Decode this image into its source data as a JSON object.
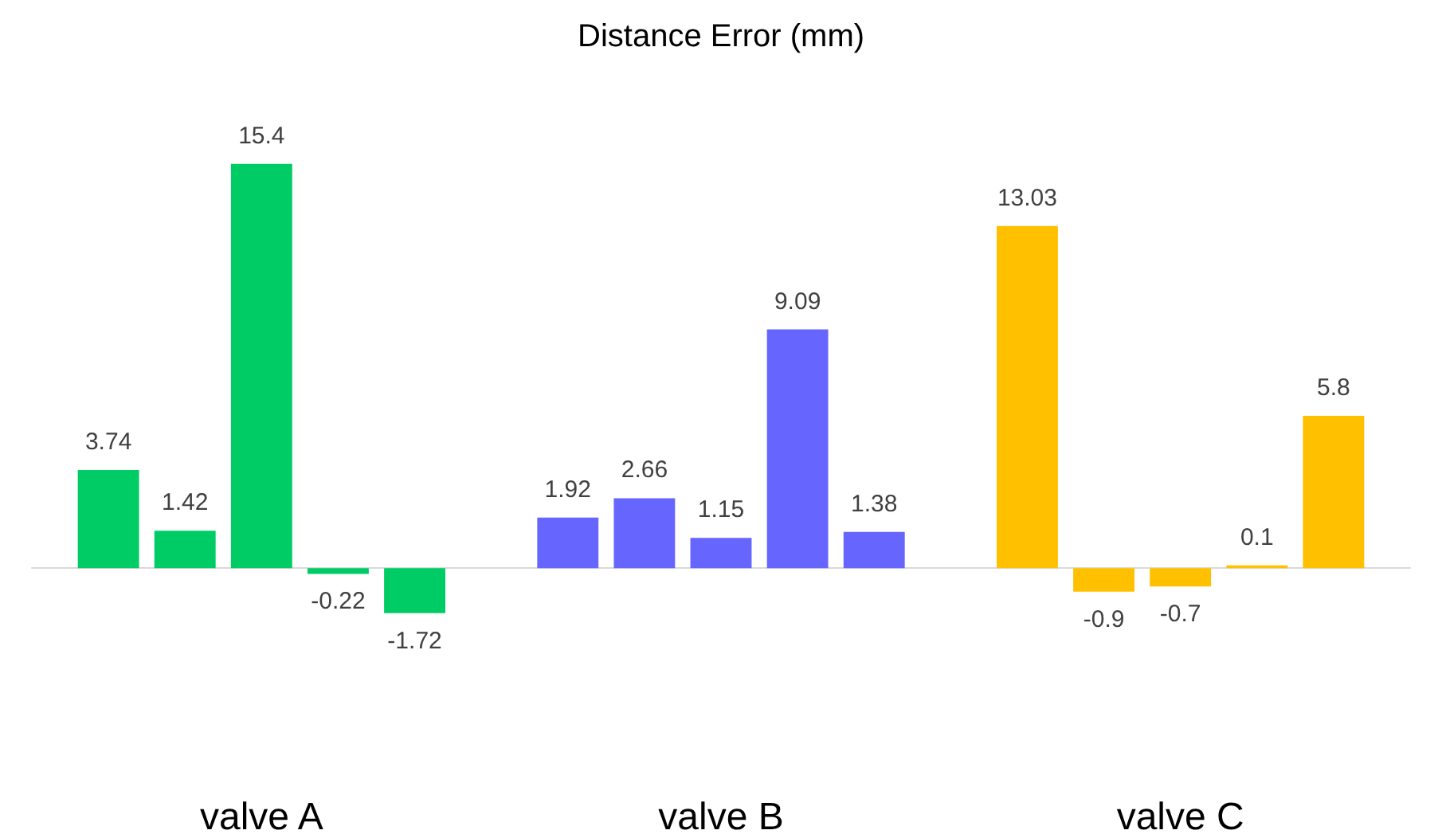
{
  "chart_data": {
    "type": "bar",
    "title": "Distance Error (mm)",
    "categories": [
      "valve A",
      "valve B",
      "valve C"
    ],
    "series": [
      {
        "colors": [
          "#00cc66",
          "#6666ff",
          "#ffc000"
        ],
        "values": [
          3.74,
          1.92,
          13.03
        ]
      },
      {
        "colors": [
          "#00cc66",
          "#6666ff",
          "#ffc000"
        ],
        "values": [
          1.42,
          2.66,
          -0.9
        ]
      },
      {
        "colors": [
          "#00cc66",
          "#6666ff",
          "#ffc000"
        ],
        "values": [
          15.4,
          1.15,
          -0.7
        ]
      },
      {
        "colors": [
          "#00cc66",
          "#6666ff",
          "#ffc000"
        ],
        "values": [
          -0.22,
          9.09,
          0.1
        ]
      },
      {
        "colors": [
          "#00cc66",
          "#6666ff",
          "#ffc000"
        ],
        "values": [
          -1.72,
          1.38,
          5.8
        ]
      }
    ],
    "data_labels": true
  }
}
